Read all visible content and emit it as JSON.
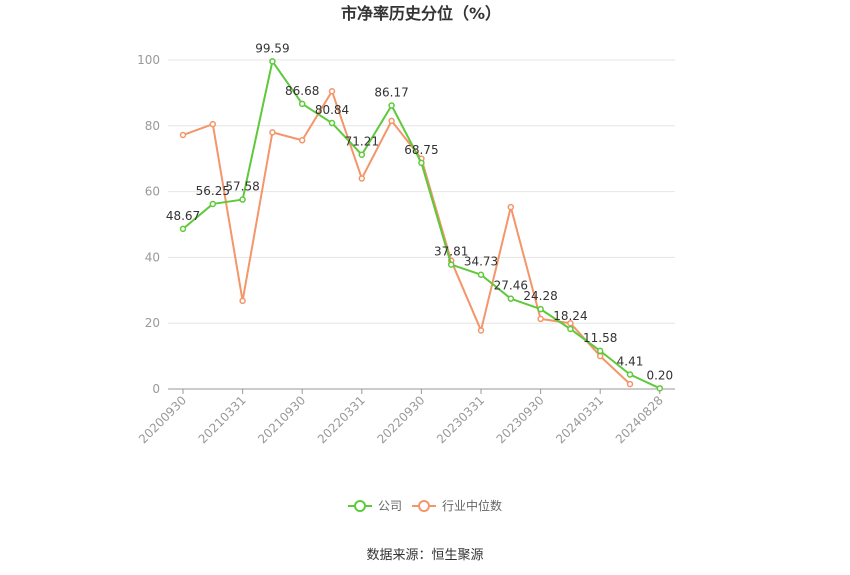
{
  "chart_data": {
    "type": "line",
    "title": "市净率历史分位（%）",
    "ylim": [
      0,
      100
    ],
    "yticks": [
      0,
      20,
      40,
      60,
      80,
      100
    ],
    "xtick_labels": [
      "20200930",
      "20210331",
      "20210930",
      "20220331",
      "20220930",
      "20230331",
      "20230930",
      "20240331",
      "20240828"
    ],
    "series": [
      {
        "name": "公司",
        "color": "#5ec93a",
        "values": [
          48.67,
          56.25,
          57.58,
          99.59,
          86.68,
          80.84,
          71.21,
          86.17,
          68.75,
          37.81,
          34.73,
          27.46,
          24.28,
          18.24,
          11.58,
          4.41,
          0.2
        ],
        "labels": [
          "48.67",
          "56.25",
          "57.58",
          "99.59",
          "86.68",
          "80.84",
          "71.21",
          "86.17",
          "68.75",
          "37.81",
          "34.73",
          "27.46",
          "24.28",
          "18.24",
          "11.58",
          "4.41",
          "0.20"
        ]
      },
      {
        "name": "行业中位数",
        "color": "#f4956a",
        "values": [
          77.2,
          80.5,
          26.8,
          78.0,
          75.6,
          90.5,
          64.0,
          81.5,
          70.0,
          39.0,
          17.8,
          55.3,
          21.3,
          20.0,
          10.0,
          1.5,
          null
        ]
      }
    ],
    "legend": "bottom-center"
  },
  "source": "数据来源：恒生聚源"
}
